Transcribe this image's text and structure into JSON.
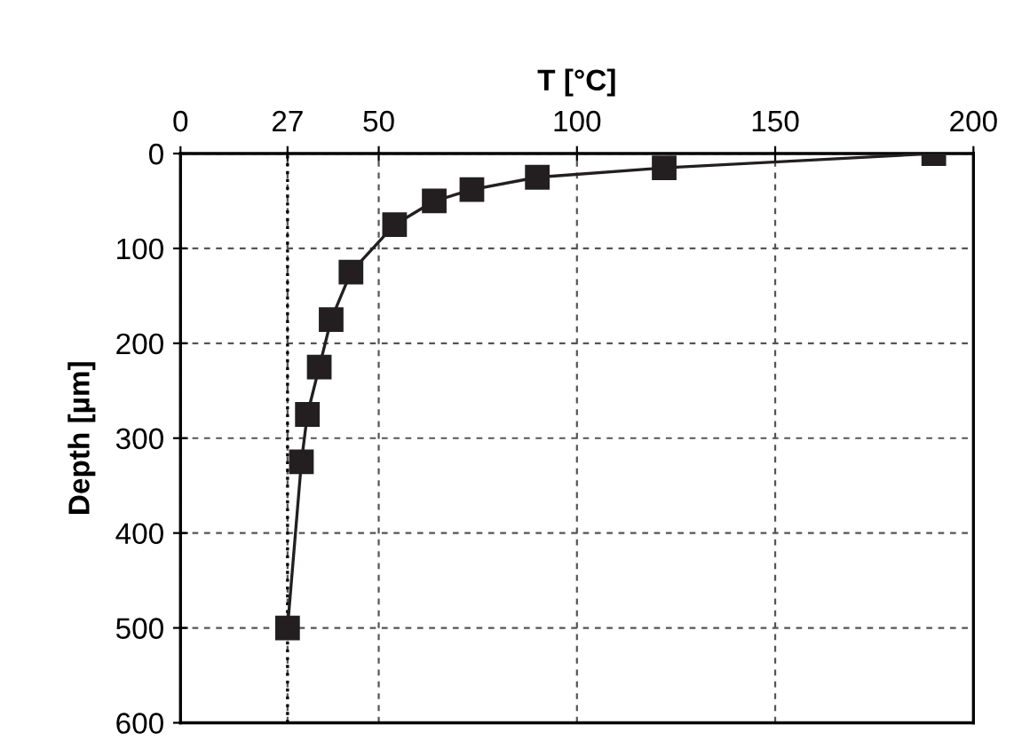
{
  "chart_data": {
    "type": "line",
    "xlabel": "T [°C]",
    "ylabel": "Depth [µm]",
    "x": [
      190,
      122,
      90,
      73.5,
      64,
      54,
      43,
      38,
      35,
      32,
      30.5,
      27
    ],
    "series": [
      {
        "color": "#231f20",
        "values": [
          0,
          15,
          25,
          38,
          50,
          75,
          125,
          175,
          225,
          275,
          325,
          500
        ]
      }
    ],
    "xlim": [
      0,
      200
    ],
    "xticks": [
      0,
      27,
      50,
      100,
      150,
      200
    ],
    "ylim": [
      600,
      0
    ],
    "yticks": [
      0,
      100,
      200,
      300,
      400,
      500,
      600
    ],
    "ref_lines": [
      {
        "axis": "x",
        "value": 27,
        "line_style": "dotted",
        "color": "#000000"
      }
    ],
    "grid": true,
    "marker": "square",
    "line_style": "solid"
  }
}
